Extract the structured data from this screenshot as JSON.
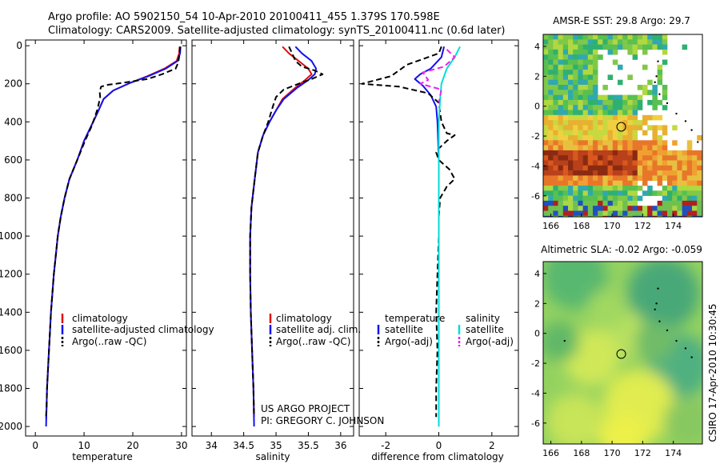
{
  "title_line1": "Argo profile: AO 5902150_54 10-Apr-2010 20100411_455 1.379S 170.598E",
  "title_line2": "Climatology: CARS2009. Satellite-adjusted climatology: synTS_20100411.nc (0.6d later)",
  "side_label": "CSIRO 17-Apr-2010 10:30:45",
  "project_line1": "US ARGO PROJECT",
  "project_line2": "PI: GREGORY C. JOHNSON",
  "colors": {
    "clim": "#dd1111",
    "sat": "#1111ee",
    "argo": "#000000",
    "sat_sal": "#00dddd",
    "argo_sal": "#ee22ee"
  },
  "chart_data": [
    {
      "type": "line",
      "name": "temperature-profile",
      "xlabel": "temperature",
      "xlim": [
        -2,
        31
      ],
      "ylim": [
        2050,
        -30
      ],
      "xticks": [
        0,
        10,
        20,
        30
      ],
      "yticks": [
        0,
        200,
        400,
        600,
        800,
        1000,
        1200,
        1400,
        1600,
        1800,
        2000
      ],
      "legend": [
        "climatology",
        "satellite-adjusted climatology",
        "Argo(..raw -QC)"
      ],
      "series": [
        {
          "name": "climatology",
          "color": "clim",
          "dash": false,
          "points": [
            [
              29.6,
              5
            ],
            [
              29.5,
              40
            ],
            [
              29.0,
              80
            ],
            [
              26.5,
              120
            ],
            [
              23.0,
              160
            ],
            [
              19.5,
              195
            ],
            [
              16.0,
              235
            ],
            [
              14.0,
              280
            ],
            [
              12.8,
              350
            ],
            [
              11.5,
              420
            ],
            [
              10.0,
              500
            ],
            [
              8.6,
              600
            ],
            [
              7.0,
              700
            ],
            [
              6.0,
              800
            ],
            [
              5.2,
              900
            ],
            [
              4.6,
              1000
            ],
            [
              4.2,
              1100
            ],
            [
              3.8,
              1200
            ],
            [
              3.5,
              1300
            ],
            [
              3.2,
              1400
            ],
            [
              3.0,
              1500
            ],
            [
              2.8,
              1600
            ],
            [
              2.6,
              1700
            ],
            [
              2.4,
              1800
            ],
            [
              2.3,
              1900
            ],
            [
              2.2,
              1960
            ]
          ]
        },
        {
          "name": "satellite-adjusted climatology",
          "color": "sat",
          "dash": false,
          "points": [
            [
              29.8,
              5
            ],
            [
              29.7,
              40
            ],
            [
              29.2,
              80
            ],
            [
              26.8,
              120
            ],
            [
              23.2,
              160
            ],
            [
              19.5,
              195
            ],
            [
              16.0,
              235
            ],
            [
              14.0,
              280
            ],
            [
              12.8,
              350
            ],
            [
              11.5,
              420
            ],
            [
              10.0,
              500
            ],
            [
              8.6,
              600
            ],
            [
              7.0,
              700
            ],
            [
              6.0,
              800
            ],
            [
              5.2,
              900
            ],
            [
              4.6,
              1000
            ],
            [
              4.2,
              1100
            ],
            [
              3.8,
              1200
            ],
            [
              3.5,
              1300
            ],
            [
              3.2,
              1400
            ],
            [
              3.0,
              1500
            ],
            [
              2.8,
              1600
            ],
            [
              2.6,
              1700
            ],
            [
              2.4,
              1800
            ],
            [
              2.3,
              1900
            ],
            [
              2.2,
              2000
            ]
          ]
        },
        {
          "name": "Argo",
          "color": "argo",
          "dash": true,
          "points": [
            [
              29.7,
              5
            ],
            [
              29.6,
              30
            ],
            [
              29.5,
              60
            ],
            [
              29.3,
              90
            ],
            [
              28.8,
              120
            ],
            [
              26.0,
              150
            ],
            [
              23.0,
              175
            ],
            [
              18.0,
              195
            ],
            [
              15.0,
              205
            ],
            [
              13.5,
              215
            ],
            [
              13.2,
              240
            ],
            [
              13.3,
              270
            ],
            [
              12.8,
              330
            ],
            [
              11.6,
              420
            ],
            [
              10.2,
              500
            ],
            [
              8.6,
              600
            ],
            [
              7.0,
              700
            ],
            [
              6.0,
              800
            ],
            [
              5.2,
              900
            ],
            [
              4.6,
              1000
            ],
            [
              4.2,
              1100
            ],
            [
              3.8,
              1200
            ],
            [
              3.5,
              1300
            ],
            [
              3.2,
              1400
            ],
            [
              3.0,
              1500
            ],
            [
              2.8,
              1600
            ],
            [
              2.6,
              1700
            ],
            [
              2.4,
              1800
            ],
            [
              2.3,
              1900
            ],
            [
              2.2,
              1950
            ]
          ]
        }
      ]
    },
    {
      "type": "line",
      "name": "salinity-profile",
      "xlabel": "salinity",
      "xlim": [
        33.7,
        36.2
      ],
      "ylim": [
        2050,
        -30
      ],
      "xticks": [
        34,
        34.5,
        35,
        35.5,
        36
      ],
      "legend": [
        "climatology",
        "satellite adj. clim.",
        "Argo(..raw -QC)"
      ],
      "series": [
        {
          "name": "climatology",
          "color": "clim",
          "dash": false,
          "points": [
            [
              35.1,
              5
            ],
            [
              35.2,
              40
            ],
            [
              35.35,
              80
            ],
            [
              35.5,
              120
            ],
            [
              35.55,
              150
            ],
            [
              35.45,
              180
            ],
            [
              35.3,
              220
            ],
            [
              35.1,
              280
            ],
            [
              35.0,
              340
            ],
            [
              34.9,
              400
            ],
            [
              34.8,
              470
            ],
            [
              34.72,
              560
            ],
            [
              34.67,
              700
            ],
            [
              34.62,
              850
            ],
            [
              34.6,
              1000
            ],
            [
              34.6,
              1200
            ],
            [
              34.61,
              1400
            ],
            [
              34.63,
              1600
            ],
            [
              34.65,
              1800
            ],
            [
              34.66,
              1950
            ]
          ]
        },
        {
          "name": "satellite adj. clim.",
          "color": "sat",
          "dash": false,
          "points": [
            [
              35.3,
              5
            ],
            [
              35.4,
              40
            ],
            [
              35.55,
              80
            ],
            [
              35.62,
              120
            ],
            [
              35.6,
              150
            ],
            [
              35.5,
              180
            ],
            [
              35.33,
              220
            ],
            [
              35.12,
              280
            ],
            [
              35.0,
              340
            ],
            [
              34.9,
              400
            ],
            [
              34.8,
              470
            ],
            [
              34.72,
              560
            ],
            [
              34.67,
              700
            ],
            [
              34.62,
              850
            ],
            [
              34.6,
              1000
            ],
            [
              34.6,
              1200
            ],
            [
              34.61,
              1400
            ],
            [
              34.63,
              1600
            ],
            [
              34.65,
              1800
            ],
            [
              34.66,
              2000
            ]
          ]
        },
        {
          "name": "Argo",
          "color": "argo",
          "dash": true,
          "points": [
            [
              35.2,
              5
            ],
            [
              35.25,
              40
            ],
            [
              35.3,
              80
            ],
            [
              35.4,
              110
            ],
            [
              35.6,
              130
            ],
            [
              35.72,
              150
            ],
            [
              35.55,
              175
            ],
            [
              35.35,
              200
            ],
            [
              35.12,
              230
            ],
            [
              35.0,
              270
            ],
            [
              34.95,
              320
            ],
            [
              34.88,
              400
            ],
            [
              34.8,
              470
            ],
            [
              34.72,
              560
            ],
            [
              34.67,
              700
            ],
            [
              34.62,
              850
            ],
            [
              34.6,
              1000
            ],
            [
              34.6,
              1200
            ],
            [
              34.61,
              1400
            ],
            [
              34.63,
              1600
            ],
            [
              34.65,
              1800
            ],
            [
              34.66,
              1950
            ]
          ]
        }
      ]
    },
    {
      "type": "line",
      "name": "difference-profile",
      "xlabel": "difference from climatology",
      "xlim": [
        -3.0,
        3.0
      ],
      "ylim": [
        2050,
        -30
      ],
      "xticks": [
        -2,
        0,
        2
      ],
      "legend": [
        "temperature",
        "satellite",
        "Argo(-adj)",
        "salinity",
        "satellite",
        "Argo(-adj)"
      ],
      "series": [
        {
          "name": "temperature satellite",
          "color": "sat",
          "dash": false,
          "points": [
            [
              0.2,
              5
            ],
            [
              0.1,
              60
            ],
            [
              -0.3,
              120
            ],
            [
              -0.7,
              150
            ],
            [
              -0.9,
              175
            ],
            [
              -0.6,
              210
            ],
            [
              -0.3,
              260
            ],
            [
              -0.1,
              320
            ],
            [
              -0.05,
              400
            ],
            [
              0.0,
              600
            ],
            [
              0.0,
              1000
            ],
            [
              0.0,
              2000
            ]
          ]
        },
        {
          "name": "temperature Argo",
          "color": "argo",
          "dash": true,
          "points": [
            [
              0.1,
              5
            ],
            [
              0.0,
              40
            ],
            [
              -0.6,
              70
            ],
            [
              -1.2,
              100
            ],
            [
              -1.8,
              160
            ],
            [
              -2.9,
              200
            ],
            [
              -1.5,
              215
            ],
            [
              -0.4,
              250
            ],
            [
              0.0,
              300
            ],
            [
              0.1,
              400
            ],
            [
              0.3,
              460
            ],
            [
              0.6,
              470
            ],
            [
              0.3,
              500
            ],
            [
              0.0,
              540
            ],
            [
              -0.1,
              560
            ],
            [
              0.0,
              600
            ],
            [
              0.4,
              650
            ],
            [
              0.6,
              700
            ],
            [
              0.3,
              740
            ],
            [
              0.05,
              800
            ],
            [
              0.0,
              900
            ],
            [
              0.0,
              1000
            ],
            [
              -0.05,
              1200
            ],
            [
              -0.1,
              1400
            ],
            [
              -0.05,
              1600
            ],
            [
              -0.1,
              1800
            ],
            [
              -0.1,
              1950
            ]
          ]
        },
        {
          "name": "salinity satellite",
          "color": "sat_sal",
          "dash": false,
          "points": [
            [
              0.8,
              5
            ],
            [
              0.6,
              60
            ],
            [
              0.3,
              120
            ],
            [
              0.1,
              200
            ],
            [
              0.05,
              280
            ],
            [
              0.0,
              400
            ],
            [
              0.0,
              600
            ],
            [
              0.0,
              1000
            ],
            [
              0.0,
              2000
            ]
          ]
        },
        {
          "name": "salinity Argo",
          "color": "argo_sal",
          "dash": true,
          "points": [
            [
              0.3,
              20
            ],
            [
              0.6,
              60
            ],
            [
              0.2,
              110
            ],
            [
              -0.6,
              140
            ],
            [
              -0.4,
              180
            ],
            [
              -0.7,
              200
            ],
            [
              0.1,
              230
            ],
            [
              0.0,
              300
            ]
          ]
        }
      ]
    },
    {
      "type": "heatmap",
      "name": "sst-map",
      "title": "AMSR-E SST: 29.8 Argo: 29.7",
      "xticks": [
        166,
        168,
        170,
        172,
        174
      ],
      "yticks": [
        4,
        2,
        0,
        -2,
        -4,
        -6
      ],
      "xlim": [
        165.5,
        175.9
      ],
      "ylim": [
        -7.4,
        4.8
      ],
      "marker": [
        170.598,
        -1.379
      ]
    },
    {
      "type": "heatmap",
      "name": "sla-map",
      "title": "Altimetric SLA: -0.02 Argo: -0.059",
      "xticks": [
        166,
        168,
        170,
        172,
        174
      ],
      "yticks": [
        4,
        2,
        0,
        -2,
        -4,
        -6
      ],
      "xlim": [
        165.5,
        175.9
      ],
      "ylim": [
        -7.4,
        4.8
      ],
      "marker": [
        170.598,
        -1.379
      ]
    }
  ]
}
